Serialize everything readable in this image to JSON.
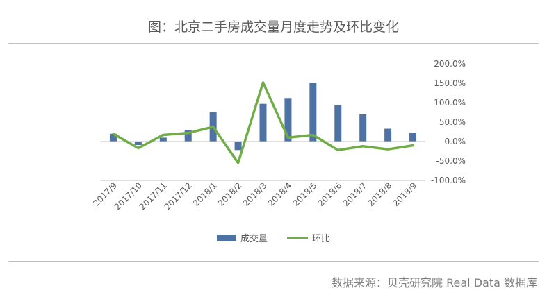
{
  "title": "图：北京二手房成交量月度走势及环比变化",
  "source": "数据来源：贝壳研究院 Real Data 数据库",
  "legend": {
    "bar": "成交量",
    "line": "环比"
  },
  "colors": {
    "bar": "#4f72a4",
    "line": "#70ad47",
    "axis": "#bfbfbf",
    "text": "#595959"
  },
  "chart_data": {
    "type": "bar",
    "title": "图：北京二手房成交量月度走势及环比变化",
    "categories": [
      "2017/9",
      "2017/10",
      "2017/11",
      "2017/12",
      "2018/1",
      "2018/2",
      "2018/3",
      "2018/4",
      "2018/5",
      "2018/6",
      "2018/7",
      "2018/8",
      "2018/9"
    ],
    "bar_values_estimated_as_percent_axis": [
      20,
      -9,
      10,
      30,
      76,
      -22,
      97,
      112,
      150,
      93,
      70,
      33,
      23
    ],
    "series": [
      {
        "name": "成交量",
        "kind": "bar",
        "values": [
          20,
          -9,
          10,
          30,
          76,
          -22,
          97,
          112,
          150,
          93,
          70,
          33,
          23
        ]
      },
      {
        "name": "环比",
        "kind": "line",
        "values": [
          20,
          -17,
          17,
          22,
          38,
          -55,
          152,
          10,
          17,
          -22,
          -12,
          -20,
          -10
        ]
      }
    ],
    "y_axis_right": {
      "ticks": [
        "200.0%",
        "150.0%",
        "100.0%",
        "50.0%",
        "0.0%",
        "-50.0%",
        "-100.0%"
      ],
      "ylim": [
        -100,
        200
      ]
    },
    "legend_position": "bottom",
    "grid": false
  }
}
